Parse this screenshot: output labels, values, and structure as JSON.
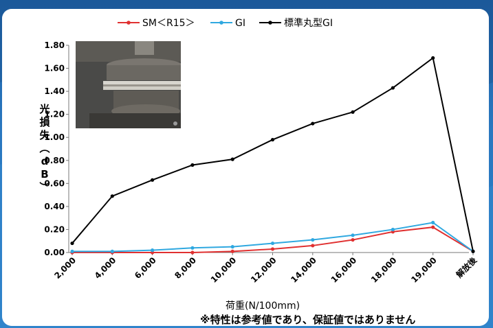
{
  "header": {
    "caption": ""
  },
  "chart_data": {
    "type": "line",
    "categories": [
      "2,000",
      "4,000",
      "6,000",
      "8,000",
      "10,000",
      "12,000",
      "14,000",
      "16,000",
      "18,000",
      "19,000",
      "解放後"
    ],
    "series": [
      {
        "name": "SM＜R15＞",
        "color": "#e03030",
        "values": [
          0.0,
          0.0,
          0.0,
          0.0,
          0.01,
          0.03,
          0.06,
          0.11,
          0.18,
          0.22,
          0.01
        ]
      },
      {
        "name": "GI",
        "color": "#2fa8e0",
        "values": [
          0.01,
          0.01,
          0.02,
          0.04,
          0.05,
          0.08,
          0.11,
          0.15,
          0.2,
          0.26,
          0.01
        ]
      },
      {
        "name": "標準丸型GI",
        "color": "#000000",
        "values": [
          0.08,
          0.49,
          0.63,
          0.76,
          0.81,
          0.98,
          1.12,
          1.22,
          1.43,
          1.69,
          0.01
        ]
      }
    ],
    "yticks": [
      "0.00",
      "0.20",
      "0.40",
      "0.60",
      "0.80",
      "1.00",
      "1.20",
      "1.40",
      "1.60",
      "1.80"
    ],
    "ylim": [
      0,
      1.8
    ],
    "ylabel_chars": [
      "光",
      "損",
      "失",
      "︵",
      "d",
      "B",
      "︶"
    ],
    "xlabel": "荷重(N/100mm)",
    "legend_position": "top",
    "grid": false
  },
  "note": "※特性は参考値であり、保証値ではありません"
}
